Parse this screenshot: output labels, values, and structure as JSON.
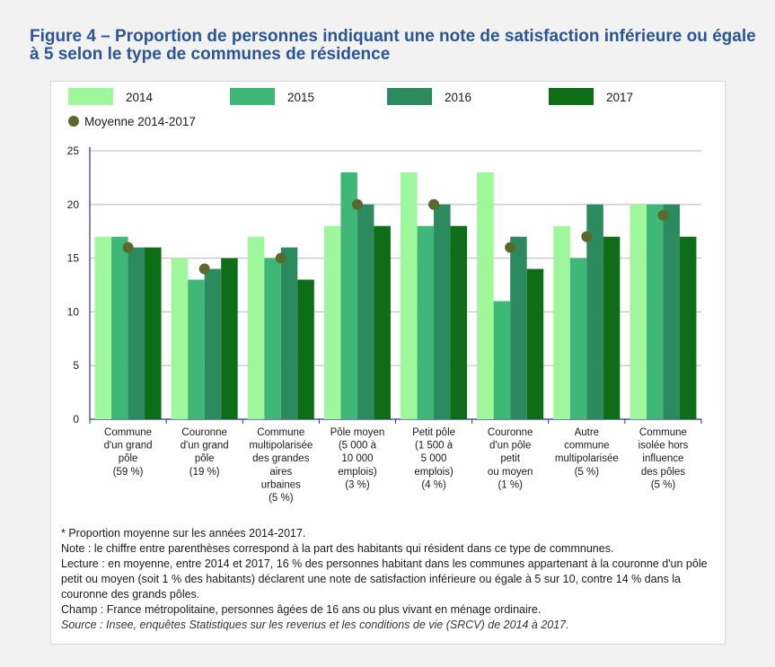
{
  "figure": {
    "title": "Figure 4 – Proportion de personnes indiquant une note de satisfaction inférieure ou égale à 5 selon le type de communes de résidence"
  },
  "colors": {
    "s2014": "#9ef79a",
    "s2015": "#3fb877",
    "s2016": "#2b8a5e",
    "s2017": "#0d6e17",
    "mean": "#5a6a2e",
    "title": "#2a5597",
    "axis": "#2b2f8a"
  },
  "chart_data": {
    "type": "bar",
    "title": "",
    "xlabel": "",
    "ylabel": "",
    "ylim": [
      0,
      25
    ],
    "yticks": [
      0,
      5,
      10,
      15,
      20,
      25
    ],
    "grid": true,
    "legend_position": "top",
    "categories": [
      [
        "Commune",
        "d'un grand",
        "pôle",
        "(59 %)"
      ],
      [
        "Couronne",
        "d'un grand",
        "pôle",
        "(19 %)"
      ],
      [
        "Commune",
        "multipolarisée",
        "des grandes",
        "aires",
        "urbaines",
        "(5 %)"
      ],
      [
        "Pôle moyen",
        "(5 000 à",
        "10 000",
        "emplois)",
        "(3 %)"
      ],
      [
        "Petit pôle",
        "(1 500 à",
        "5 000",
        "emplois)",
        "(4 %)"
      ],
      [
        "Couronne",
        "d'un pôle",
        "petit",
        "ou moyen",
        "(1 %)"
      ],
      [
        "Autre",
        "commune",
        "multipolarisée",
        "(5 %)"
      ],
      [
        "Commune",
        "isolée hors",
        "influence",
        "des pôles",
        "(5 %)"
      ]
    ],
    "series": [
      {
        "name": "2014",
        "color": "#9ef79a",
        "values": [
          17,
          15,
          17,
          18,
          23,
          23,
          18,
          20
        ]
      },
      {
        "name": "2015",
        "color": "#3fb877",
        "values": [
          17,
          13,
          15,
          23,
          18,
          11,
          15,
          20
        ]
      },
      {
        "name": "2016",
        "color": "#2b8a5e",
        "values": [
          16,
          14,
          16,
          20,
          20,
          17,
          20,
          20
        ]
      },
      {
        "name": "2017",
        "color": "#0d6e17",
        "values": [
          16,
          15,
          13,
          18,
          18,
          14,
          17,
          17
        ]
      }
    ],
    "mean": {
      "name": "Moyenne 2014-2017",
      "type": "scatter",
      "values": [
        16,
        14,
        15,
        20,
        20,
        16,
        17,
        19
      ]
    }
  },
  "notes": {
    "line1": "* Proportion moyenne sur les années 2014-2017.",
    "line2": "Note : le chiffre entre parenthèses correspond à la part des habitants qui résident dans ce type de commnunes.",
    "line3": "Lecture : en moyenne, entre 2014 et 2017, 16 % des personnes habitant dans les communes appartenant à la couronne d'un pôle petit ou moyen (soit 1 % des habitants) déclarent une note de satisfaction inférieure ou égale à 5 sur 10, contre 14 % dans la couronne des grands pôles.",
    "line4": "Champ : France métropolitaine, personnes âgées de 16 ans ou plus vivant en ménage ordinaire.",
    "source": "Source : Insee, enquêtes Statistiques sur les revenus et les conditions de vie (SRCV) de 2014 à 2017."
  }
}
